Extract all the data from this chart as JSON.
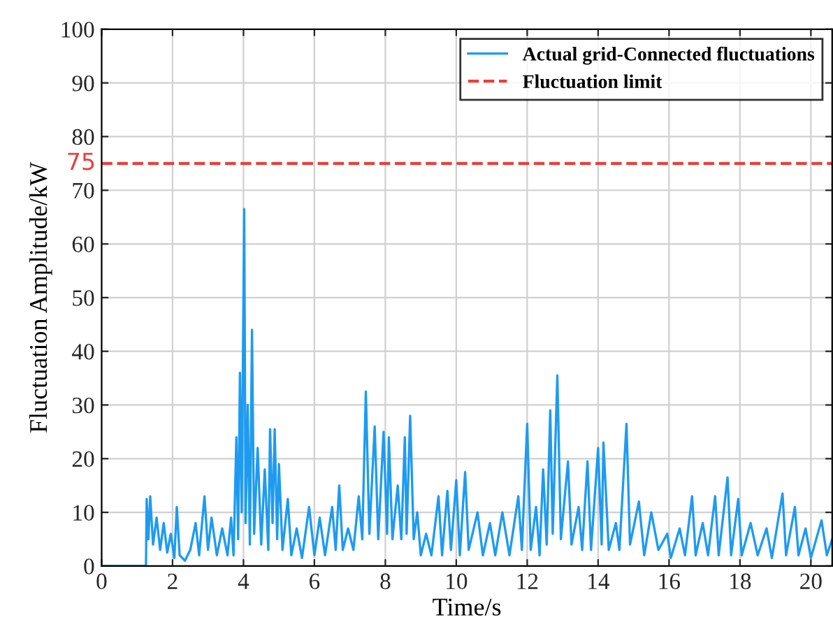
{
  "chart_data": {
    "type": "line",
    "xlabel": "Time/s",
    "ylabel": "Fluctuation Amplitude/kW",
    "xlim": [
      0,
      20.6
    ],
    "xticks": [
      0,
      2,
      4,
      6,
      8,
      10,
      12,
      14,
      16,
      18,
      20
    ],
    "ylim": [
      0,
      100
    ],
    "yticks": [
      0,
      10,
      20,
      30,
      40,
      50,
      60,
      70,
      80,
      90,
      100
    ],
    "grid": true,
    "legend": "top right",
    "line_style": "solid",
    "marker": "none",
    "series": [
      {
        "name": "Actual grid-Connected fluctuations",
        "color": "#1e9bf0",
        "x": [
          0,
          1.25,
          1.27,
          1.32,
          1.37,
          1.45,
          1.55,
          1.65,
          1.75,
          1.85,
          1.95,
          2.05,
          2.12,
          2.2,
          2.35,
          2.5,
          2.65,
          2.75,
          2.9,
          3.0,
          3.1,
          3.25,
          3.4,
          3.55,
          3.65,
          3.72,
          3.8,
          3.85,
          3.9,
          3.95,
          4.02,
          4.06,
          4.12,
          4.18,
          4.24,
          4.3,
          4.4,
          4.5,
          4.6,
          4.7,
          4.75,
          4.82,
          4.88,
          4.95,
          5.0,
          5.1,
          5.25,
          5.35,
          5.5,
          5.65,
          5.85,
          6.0,
          6.15,
          6.3,
          6.5,
          6.6,
          6.7,
          6.8,
          6.95,
          7.1,
          7.25,
          7.35,
          7.45,
          7.55,
          7.7,
          7.8,
          7.95,
          8.05,
          8.1,
          8.2,
          8.35,
          8.45,
          8.55,
          8.6,
          8.7,
          8.8,
          8.9,
          9.0,
          9.15,
          9.3,
          9.5,
          9.6,
          9.75,
          9.85,
          10.0,
          10.1,
          10.25,
          10.35,
          10.6,
          10.75,
          10.95,
          11.1,
          11.3,
          11.5,
          11.75,
          11.85,
          12.0,
          12.1,
          12.25,
          12.35,
          12.45,
          12.55,
          12.65,
          12.72,
          12.85,
          12.95,
          13.15,
          13.25,
          13.45,
          13.55,
          13.7,
          13.8,
          14.0,
          14.1,
          14.15,
          14.3,
          14.5,
          14.6,
          14.8,
          14.9,
          15.15,
          15.3,
          15.5,
          15.7,
          15.95,
          16.05,
          16.3,
          16.45,
          16.65,
          16.75,
          16.95,
          17.1,
          17.3,
          17.4,
          17.65,
          17.75,
          17.95,
          18.05,
          18.3,
          18.5,
          18.75,
          18.9,
          19.2,
          19.3,
          19.55,
          19.65,
          19.85,
          20.0,
          20.3,
          20.45,
          20.6
        ],
        "values": [
          0,
          0,
          12.5,
          5,
          13,
          4,
          9,
          3,
          8,
          2.5,
          6,
          1.5,
          11,
          2,
          1,
          3,
          8,
          2,
          13,
          3,
          9,
          2,
          7,
          2,
          9,
          2,
          24,
          5,
          36,
          10,
          66.5,
          8,
          30,
          4,
          44,
          6,
          22,
          4,
          18,
          3,
          25.5,
          8,
          25.5,
          5,
          19,
          3,
          12.5,
          2,
          7,
          1.5,
          11,
          2,
          9,
          2,
          11,
          3,
          15,
          3,
          7,
          3,
          13,
          5,
          32.5,
          6,
          26,
          5,
          25,
          6,
          24,
          5,
          15,
          5,
          24,
          6,
          28,
          5,
          10,
          2,
          6,
          2,
          13,
          2,
          14,
          3,
          16,
          2,
          17.5,
          3,
          10,
          2,
          8,
          2,
          10,
          2,
          13,
          3,
          26.5,
          3,
          11,
          2,
          18,
          4,
          29,
          6,
          35.5,
          5,
          19.5,
          4,
          11,
          3,
          19.5,
          3,
          22,
          4,
          23,
          3,
          8,
          3,
          26.5,
          4,
          12,
          2,
          10,
          3,
          6,
          1.5,
          7,
          2,
          13,
          2,
          8,
          2,
          13,
          2,
          16.5,
          2,
          12.5,
          2,
          8,
          2,
          7,
          1.5,
          13.5,
          2,
          11,
          2,
          7,
          1.5,
          8.5,
          2,
          5
        ]
      }
    ],
    "ref_lines": [
      {
        "axis": "y",
        "value": 75,
        "label": "Fluctuation limit",
        "color": "#e8403a",
        "line_style": "dashed"
      }
    ],
    "annotations": [
      {
        "text": "75",
        "x": 0,
        "y": 75
      }
    ]
  }
}
